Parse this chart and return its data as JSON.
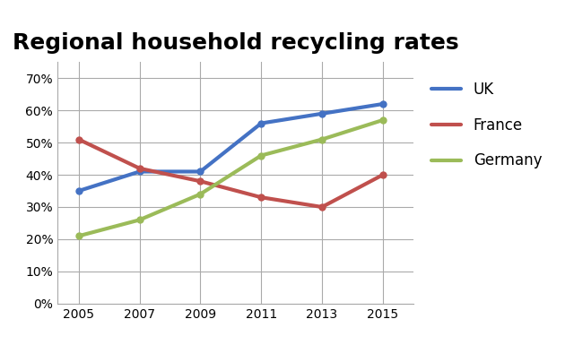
{
  "title": "Regional household recycling rates",
  "years": [
    2005,
    2007,
    2009,
    2011,
    2013,
    2015
  ],
  "series": {
    "UK": {
      "values": [
        35,
        41,
        41,
        56,
        59,
        62
      ],
      "color": "#4472C4"
    },
    "France": {
      "values": [
        51,
        42,
        38,
        33,
        30,
        40
      ],
      "color": "#C0504D"
    },
    "Germany": {
      "values": [
        21,
        26,
        34,
        46,
        51,
        57
      ],
      "color": "#9BBB59"
    }
  },
  "ylim": [
    0,
    75
  ],
  "yticks": [
    0,
    10,
    20,
    30,
    40,
    50,
    60,
    70
  ],
  "ytick_labels": [
    "0%",
    "10%",
    "20%",
    "30%",
    "40%",
    "50%",
    "60%",
    "70%"
  ],
  "xticks": [
    2005,
    2007,
    2009,
    2011,
    2013,
    2015
  ],
  "background_color": "#ffffff",
  "plot_bg_color": "#ffffff",
  "grid_color": "#aaaaaa",
  "title_fontsize": 18,
  "legend_fontsize": 12,
  "tick_fontsize": 10,
  "line_width": 3.0
}
